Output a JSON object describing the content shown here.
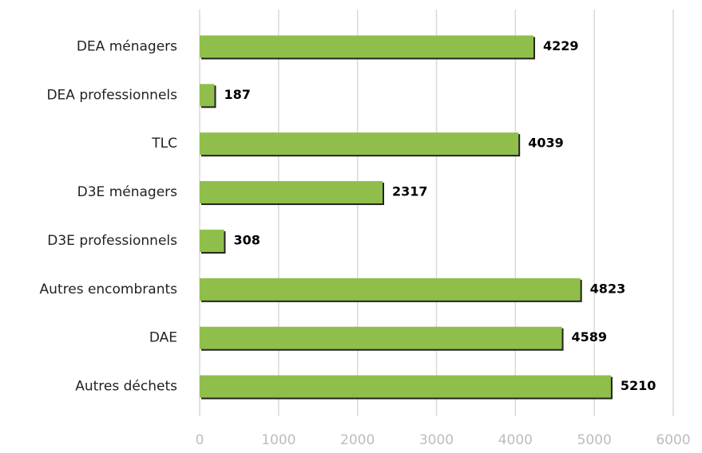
{
  "chart_data": {
    "type": "bar",
    "orientation": "horizontal",
    "categories": [
      "DEA ménagers",
      "DEA professionnels",
      "TLC",
      "D3E ménagers",
      "D3E professionnels",
      "Autres encombrants",
      "DAE",
      "Autres déchets"
    ],
    "values": [
      4229,
      187,
      4039,
      2317,
      308,
      4823,
      4589,
      5210
    ],
    "color": "#8fbf4a",
    "xlim": [
      0,
      6000
    ],
    "xticks": [
      0,
      1000,
      2000,
      3000,
      4000,
      5000,
      6000
    ],
    "grid": true
  }
}
